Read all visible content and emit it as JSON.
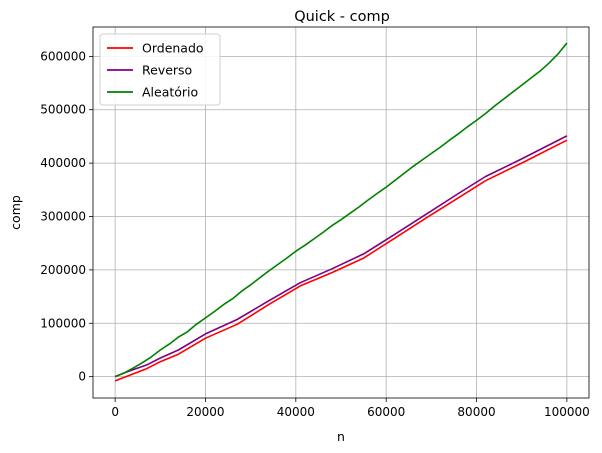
{
  "chart_data": {
    "type": "line",
    "title": "Quick - comp",
    "xlabel": "n",
    "ylabel": "comp",
    "xlim": [
      -4900,
      104900
    ],
    "ylim": [
      -40000,
      655000
    ],
    "xticks": [
      0,
      20000,
      40000,
      60000,
      80000,
      100000
    ],
    "yticks": [
      0,
      100000,
      200000,
      300000,
      400000,
      500000,
      600000
    ],
    "grid": true,
    "legend_position": "top-left",
    "series": [
      {
        "name": "Ordenado",
        "color": "#ff0000",
        "points": [
          [
            0,
            -8000
          ],
          [
            3000,
            2000
          ],
          [
            7000,
            15000
          ],
          [
            10000,
            28000
          ],
          [
            14000,
            42000
          ],
          [
            20000,
            72000
          ],
          [
            27000,
            98000
          ],
          [
            34000,
            135000
          ],
          [
            41000,
            170000
          ],
          [
            48000,
            195000
          ],
          [
            55000,
            222000
          ],
          [
            62000,
            260000
          ],
          [
            69000,
            298000
          ],
          [
            76000,
            335000
          ],
          [
            82000,
            367000
          ],
          [
            90000,
            400000
          ],
          [
            100000,
            443000
          ]
        ]
      },
      {
        "name": "Reverso",
        "color": "#800080",
        "points": [
          [
            0,
            0
          ],
          [
            3000,
            10000
          ],
          [
            7000,
            22000
          ],
          [
            10000,
            35000
          ],
          [
            14000,
            50000
          ],
          [
            20000,
            80000
          ],
          [
            27000,
            107000
          ],
          [
            34000,
            142000
          ],
          [
            41000,
            176000
          ],
          [
            48000,
            202000
          ],
          [
            55000,
            230000
          ],
          [
            62000,
            267000
          ],
          [
            69000,
            305000
          ],
          [
            76000,
            343000
          ],
          [
            82000,
            375000
          ],
          [
            90000,
            408000
          ],
          [
            100000,
            451000
          ]
        ]
      },
      {
        "name": "Aleatório",
        "color": "#008000",
        "points": [
          [
            0,
            0
          ],
          [
            2000,
            7000
          ],
          [
            4000,
            16000
          ],
          [
            6000,
            26000
          ],
          [
            8000,
            37000
          ],
          [
            10000,
            50000
          ],
          [
            12000,
            61000
          ],
          [
            14000,
            74000
          ],
          [
            16000,
            84000
          ],
          [
            18000,
            98000
          ],
          [
            20000,
            110000
          ],
          [
            22000,
            122000
          ],
          [
            24000,
            135000
          ],
          [
            26000,
            146000
          ],
          [
            28000,
            160000
          ],
          [
            30000,
            172000
          ],
          [
            32000,
            185000
          ],
          [
            34000,
            198000
          ],
          [
            36000,
            210000
          ],
          [
            38000,
            222000
          ],
          [
            40000,
            235000
          ],
          [
            42000,
            246000
          ],
          [
            44000,
            258000
          ],
          [
            46000,
            270000
          ],
          [
            48000,
            283000
          ],
          [
            50000,
            294000
          ],
          [
            52000,
            306000
          ],
          [
            54000,
            318000
          ],
          [
            56000,
            331000
          ],
          [
            58000,
            343000
          ],
          [
            60000,
            355000
          ],
          [
            62000,
            368000
          ],
          [
            64000,
            381000
          ],
          [
            66000,
            394000
          ],
          [
            68000,
            406000
          ],
          [
            70000,
            418000
          ],
          [
            72000,
            430000
          ],
          [
            74000,
            443000
          ],
          [
            76000,
            455000
          ],
          [
            78000,
            468000
          ],
          [
            80000,
            480000
          ],
          [
            82000,
            493000
          ],
          [
            84000,
            507000
          ],
          [
            86000,
            520000
          ],
          [
            88000,
            533000
          ],
          [
            90000,
            546000
          ],
          [
            92000,
            559000
          ],
          [
            94000,
            572000
          ],
          [
            96000,
            587000
          ],
          [
            98000,
            604000
          ],
          [
            100000,
            625000
          ]
        ]
      }
    ]
  }
}
